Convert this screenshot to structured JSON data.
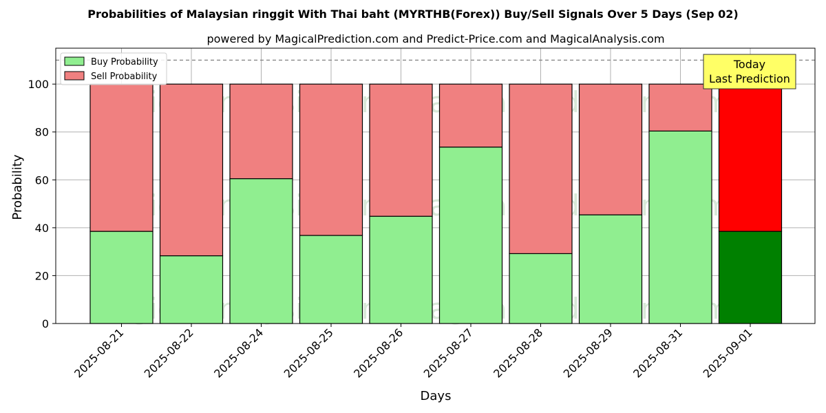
{
  "chart_data": {
    "type": "bar",
    "stacked": true,
    "title": "Probabilities of Malaysian ringgit With Thai baht (MYRTHB(Forex)) Buy/Sell Signals Over 5 Days (Sep 02)",
    "subtitle": "powered by MagicalPrediction.com and Predict-Price.com and MagicalAnalysis.com",
    "xlabel": "Days",
    "ylabel": "Probability",
    "ylim": [
      0,
      115
    ],
    "yticks": [
      0,
      20,
      40,
      60,
      80,
      100
    ],
    "grid": true,
    "legend_position": "top-left",
    "reference_line": 110,
    "categories": [
      "2025-08-21",
      "2025-08-22",
      "2025-08-24",
      "2025-08-25",
      "2025-08-26",
      "2025-08-27",
      "2025-08-28",
      "2025-08-29",
      "2025-08-31",
      "2025-09-01"
    ],
    "series": [
      {
        "name": "Buy Probability",
        "values": [
          38.5,
          28.3,
          60.5,
          36.8,
          44.8,
          73.7,
          29.2,
          45.4,
          80.4,
          38.5
        ],
        "color": "#90ee90",
        "highlight_color": "#008000"
      },
      {
        "name": "Sell Probability",
        "values": [
          61.5,
          71.7,
          39.5,
          63.2,
          55.2,
          26.3,
          70.8,
          54.6,
          19.6,
          61.5
        ],
        "color": "#f08080",
        "highlight_color": "#ff0000"
      }
    ],
    "highlight_index": 9,
    "annotation": {
      "lines": [
        "Today",
        "Last Prediction"
      ],
      "background": "#ffff66"
    },
    "watermarks": [
      "MagicalAnalysis.com",
      "MagicalPrediction.com"
    ]
  }
}
